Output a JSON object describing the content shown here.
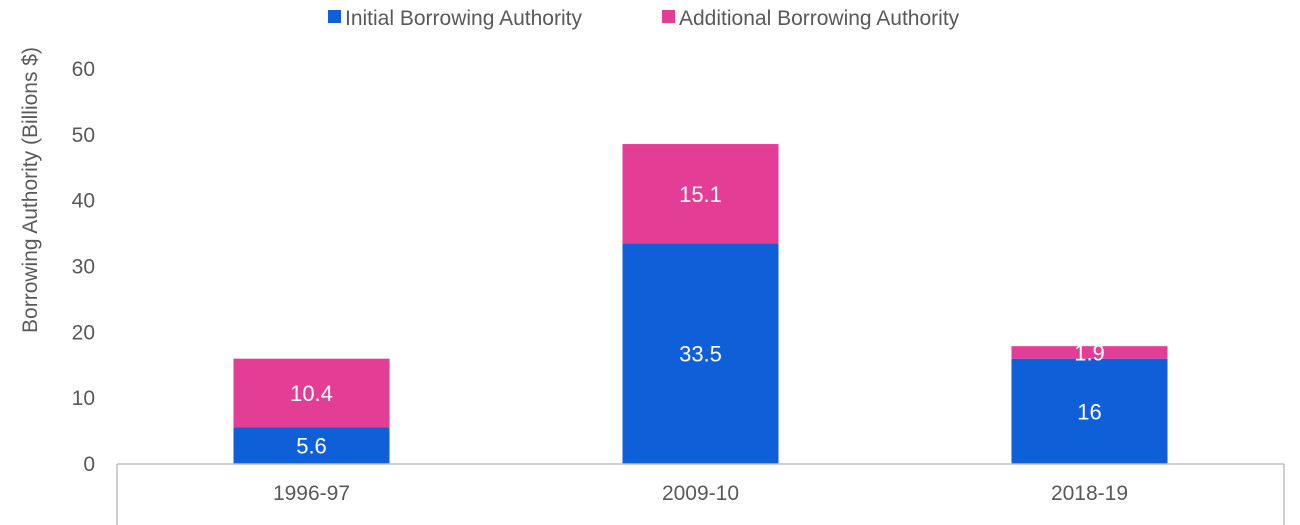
{
  "chart_data": {
    "type": "bar",
    "stacked": true,
    "title": "",
    "xlabel": "",
    "ylabel": "Borrowing Authority (Billions $)",
    "ylim": [
      0,
      60
    ],
    "yticks": [
      0,
      10,
      20,
      30,
      40,
      50,
      60
    ],
    "grid": false,
    "legend_position": "top",
    "categories": [
      "1996-97",
      "2009-10",
      "2018-19"
    ],
    "series": [
      {
        "name": "Initial Borrowing Authority",
        "color": "#0E5FD8",
        "values": [
          5.6,
          33.5,
          16
        ],
        "labels": [
          "5.6",
          "33.5",
          "16"
        ]
      },
      {
        "name": "Additional Borrowing Authority",
        "color": "#E43D96",
        "values": [
          10.4,
          15.1,
          1.9
        ],
        "labels": [
          "10.4",
          "15.1",
          "1.9"
        ]
      }
    ]
  }
}
